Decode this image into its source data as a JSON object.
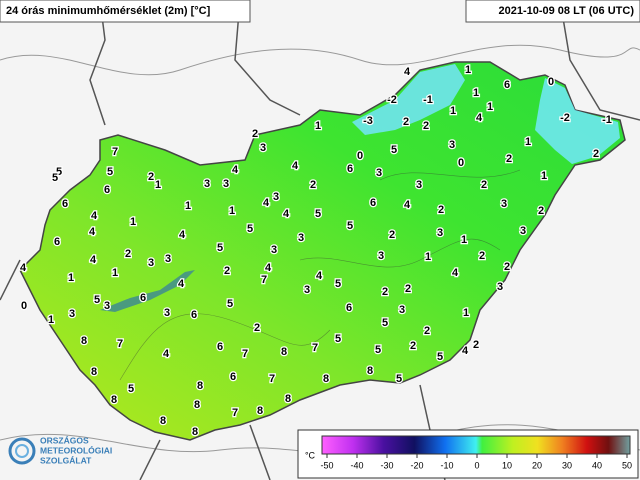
{
  "header": {
    "title": "24 órás minimumhőmérséklet (2m) [°C]",
    "timestamp": "2021-10-09 08 LT (06 UTC)"
  },
  "stations": [
    4,
    1,
    6,
    0,
    -2,
    -1,
    1,
    1,
    1,
    -3,
    2,
    2,
    1,
    4,
    -2,
    -1,
    2,
    3,
    3,
    1,
    2,
    7,
    0,
    5,
    0,
    2,
    5,
    5,
    5,
    2,
    4,
    4,
    6,
    3,
    1,
    6,
    1,
    3,
    3,
    2,
    3,
    2,
    6,
    1,
    1,
    4,
    3,
    4,
    6,
    4,
    2,
    3,
    2,
    4,
    1,
    5,
    4,
    5,
    5,
    2,
    3,
    3,
    6,
    4,
    3,
    1,
    2,
    3,
    5,
    3,
    3,
    1,
    2,
    4,
    4,
    3,
    1,
    2,
    4,
    4,
    4,
    2,
    1,
    4,
    7,
    5,
    3,
    2,
    2,
    3,
    0,
    5,
    3,
    6,
    5,
    6,
    3,
    1,
    1,
    3,
    3,
    6,
    5,
    2,
    2,
    7,
    6,
    7,
    8,
    7,
    5,
    5,
    2,
    5,
    4,
    2,
    4,
    8,
    7,
    8,
    8,
    5,
    5,
    8,
    6,
    8,
    8,
    7,
    8,
    8,
    8,
    8,
    8
  ],
  "colorbar": {
    "unit": "°C",
    "range": [
      -50,
      50
    ],
    "ticks": [
      -50,
      -40,
      -30,
      -20,
      -10,
      0,
      10,
      20,
      30,
      40,
      50
    ]
  },
  "logo": {
    "lines": [
      "ORSZÁGOS",
      "METEOROLÓGIAI",
      "SZOLGÁLAT"
    ]
  }
}
